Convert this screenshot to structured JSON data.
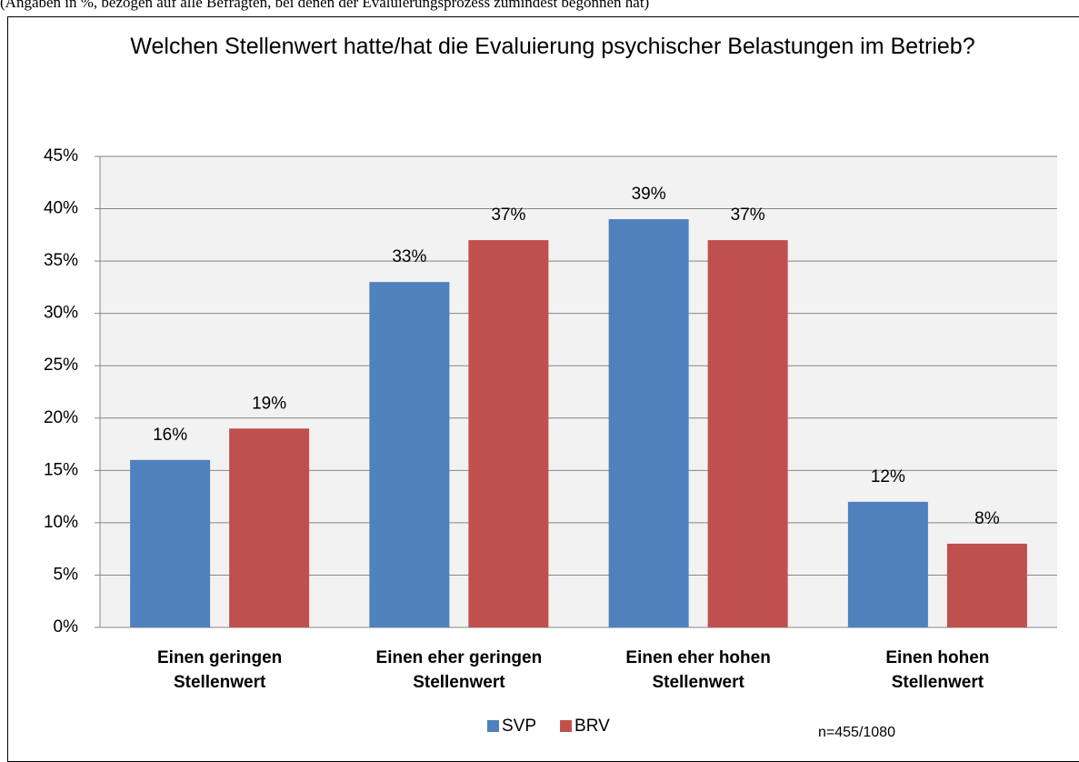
{
  "chart_data": {
    "type": "bar",
    "subtitle": "(Angaben in %, bezogen auf alle Befragten, bei denen der Evaluierungsprozess zumindest begonnen hat)",
    "title": "Welchen Stellenwert hatte/hat die Evaluierung psychischer Belastungen im Betrieb?",
    "categories": [
      "Einen geringen Stellenwert",
      "Einen eher geringen Stellenwert",
      "Einen eher hohen Stellenwert",
      "Einen hohen Stellenwert"
    ],
    "series": [
      {
        "name": "SVP",
        "color": "#4f81bd",
        "values": [
          16,
          33,
          39,
          12
        ],
        "value_labels": [
          "16%",
          "33%",
          "39%",
          "12%"
        ]
      },
      {
        "name": "BRV",
        "color": "#c0504d",
        "values": [
          19,
          37,
          37,
          8
        ],
        "value_labels": [
          "19%",
          "37%",
          "37%",
          "8%"
        ]
      }
    ],
    "ylim": [
      0,
      45
    ],
    "yticks": [
      {
        "value": 0,
        "label": "0%"
      },
      {
        "value": 5,
        "label": "5%"
      },
      {
        "value": 10,
        "label": "10%"
      },
      {
        "value": 15,
        "label": "15%"
      },
      {
        "value": 20,
        "label": "20%"
      },
      {
        "value": 25,
        "label": "25%"
      },
      {
        "value": 30,
        "label": "30%"
      },
      {
        "value": 35,
        "label": "35%"
      },
      {
        "value": 40,
        "label": "40%"
      },
      {
        "value": 45,
        "label": "45%"
      }
    ],
    "grid": true,
    "legend": "bottom",
    "annotation": "n=455/1080"
  }
}
